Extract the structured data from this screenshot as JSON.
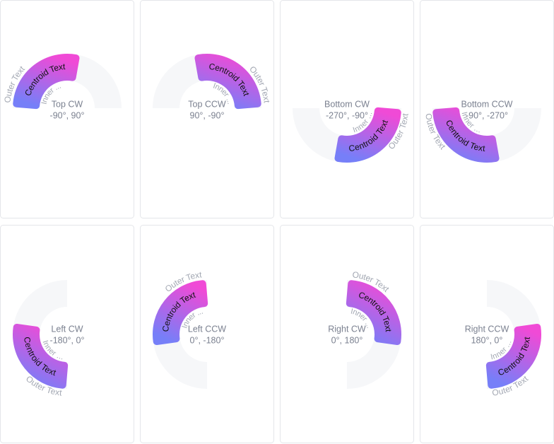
{
  "panels": [
    {
      "title": "Top CW",
      "range": "-90°, 90°",
      "centroid": "Centroid Text",
      "outer": "Outer Text",
      "inner": "Inner ..."
    },
    {
      "title": "Top CCW",
      "range": "90°, -90°",
      "centroid": "Centroid Text",
      "outer": "Outer Text",
      "inner": "Inner ..."
    },
    {
      "title": "Bottom CW",
      "range": "-270°, -90°",
      "centroid": "Centroid Text",
      "outer": "Outer Text",
      "inner": "Inner ..."
    },
    {
      "title": "Bottom CCW",
      "range": "-90°, -270°",
      "centroid": "Centroid Text",
      "outer": "Outer Text",
      "inner": "Inner ..."
    },
    {
      "title": "Left CW",
      "range": "-180°, 0°",
      "centroid": "Centroid Text",
      "outer": "Outer Text",
      "inner": "Inner ..."
    },
    {
      "title": "Left CCW",
      "range": "0°, -180°",
      "centroid": "Centroid Text",
      "outer": "Outer Text",
      "inner": "Inner ..."
    },
    {
      "title": "Right CW",
      "range": "0°, 180°",
      "centroid": "Centroid Text",
      "outer": "Outer Text",
      "inner": "Inner ..."
    },
    {
      "title": "Right CCW",
      "range": "180°, 0°",
      "centroid": "Centroid Text",
      "outer": "Outer Text",
      "inner": "Inner ..."
    }
  ]
}
